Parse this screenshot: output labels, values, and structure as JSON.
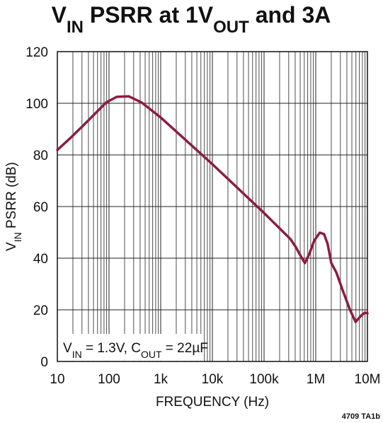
{
  "chart_data": {
    "type": "line",
    "title": [
      "V",
      "IN",
      " PSRR at 1V",
      "OUT",
      " and 3A"
    ],
    "ylabel": [
      "V",
      "IN",
      " PSRR (dB)"
    ],
    "xlabel": "FREQUENCY (Hz)",
    "annotation": [
      "V",
      "IN",
      " = 1.3V, C",
      "OUT",
      " = 22µF"
    ],
    "note": "4709 TA1b",
    "xscale": "log",
    "grid": true,
    "minor_grid": true,
    "color": "#8c1d40",
    "x": [
      10,
      18,
      31,
      55,
      88,
      141,
      242,
      427,
      1000,
      10000,
      100000,
      324000,
      417000,
      513000,
      617000,
      759000,
      933000,
      1200000,
      1450000,
      1700000,
      2000000,
      2500000,
      3300000,
      4600000,
      5900000,
      7600000,
      8900000,
      10000000
    ],
    "values": [
      81.9,
      86.6,
      91.2,
      96.2,
      100.3,
      102.5,
      102.7,
      100.3,
      94.5,
      76.4,
      57.5,
      47.4,
      44.1,
      40.8,
      38.1,
      41.9,
      46.8,
      49.9,
      49.3,
      45.5,
      38.1,
      34.5,
      27.7,
      20,
      15.3,
      17.8,
      18.9,
      18.6
    ],
    "xlim": [
      10,
      10000000
    ],
    "xticks": [
      10,
      100,
      {
        "value": 1000,
        "label": "1k"
      },
      {
        "value": 10000,
        "label": "10k"
      },
      {
        "value": 100000,
        "label": "100k"
      },
      {
        "value": 1000000,
        "label": "1M"
      },
      {
        "value": 10000000,
        "label": "10M"
      }
    ],
    "ylim": [
      0,
      120
    ],
    "yticks": [
      0,
      20,
      40,
      60,
      80,
      100,
      120
    ]
  }
}
